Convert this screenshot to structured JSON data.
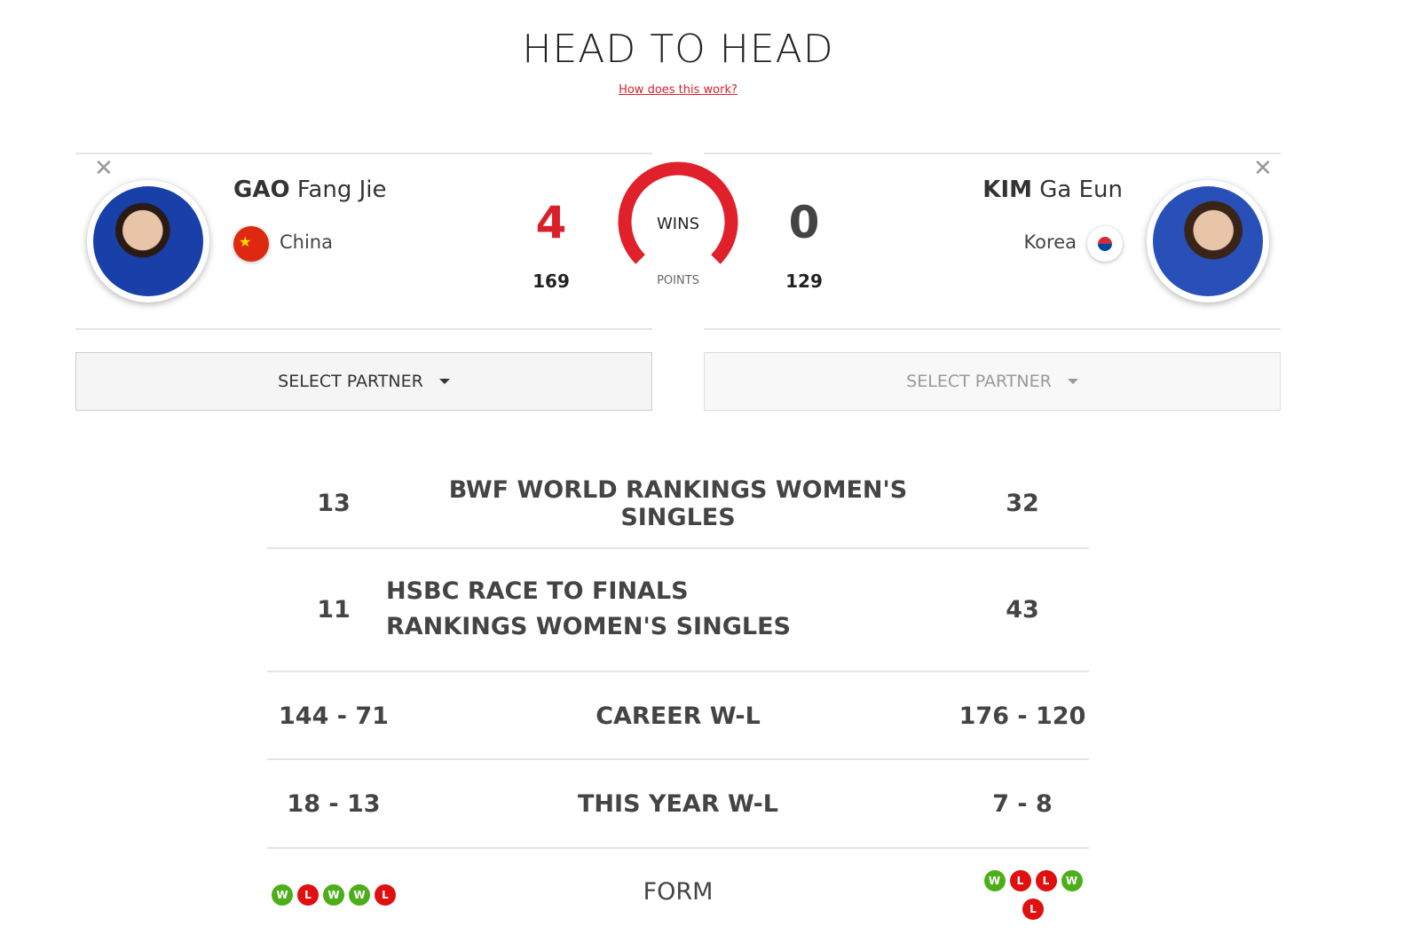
{
  "page": {
    "title": "HEAD TO HEAD",
    "help_link": "How does this work?"
  },
  "player1": {
    "surname": "GAO",
    "given": "Fang Jie",
    "country": "China",
    "wins": "4",
    "points": "169",
    "select_partner": "SELECT PARTNER",
    "flag_icon": "china-flag-icon"
  },
  "player2": {
    "surname": "KIM",
    "given": "Ga Eun",
    "country": "Korea",
    "wins": "0",
    "points": "129",
    "select_partner": "SELECT PARTNER",
    "flag_icon": "korea-flag-icon"
  },
  "gauge": {
    "label": "WINS",
    "sublabel": "POINTS",
    "color": "#e0202a",
    "player1_share": 1.0
  },
  "stats": [
    {
      "left": "13",
      "label": "BWF WORLD RANKINGS WOMEN'S SINGLES",
      "right": "32"
    },
    {
      "left": "11",
      "label": "HSBC RACE TO FINALS RANKINGS WOMEN'S SINGLES",
      "right": "43"
    },
    {
      "left": "144 - 71",
      "label": "CAREER W-L",
      "right": "176 - 120"
    },
    {
      "left": "18 - 13",
      "label": "THIS YEAR W-L",
      "right": "7 - 8"
    }
  ],
  "form": {
    "label": "FORM",
    "left": [
      "W",
      "L",
      "W",
      "W",
      "L"
    ],
    "right": [
      "W",
      "L",
      "L",
      "W",
      "L"
    ],
    "win_color": "#4caf1a",
    "loss_color": "#e01010"
  },
  "colors": {
    "accent": "#d9202a"
  }
}
